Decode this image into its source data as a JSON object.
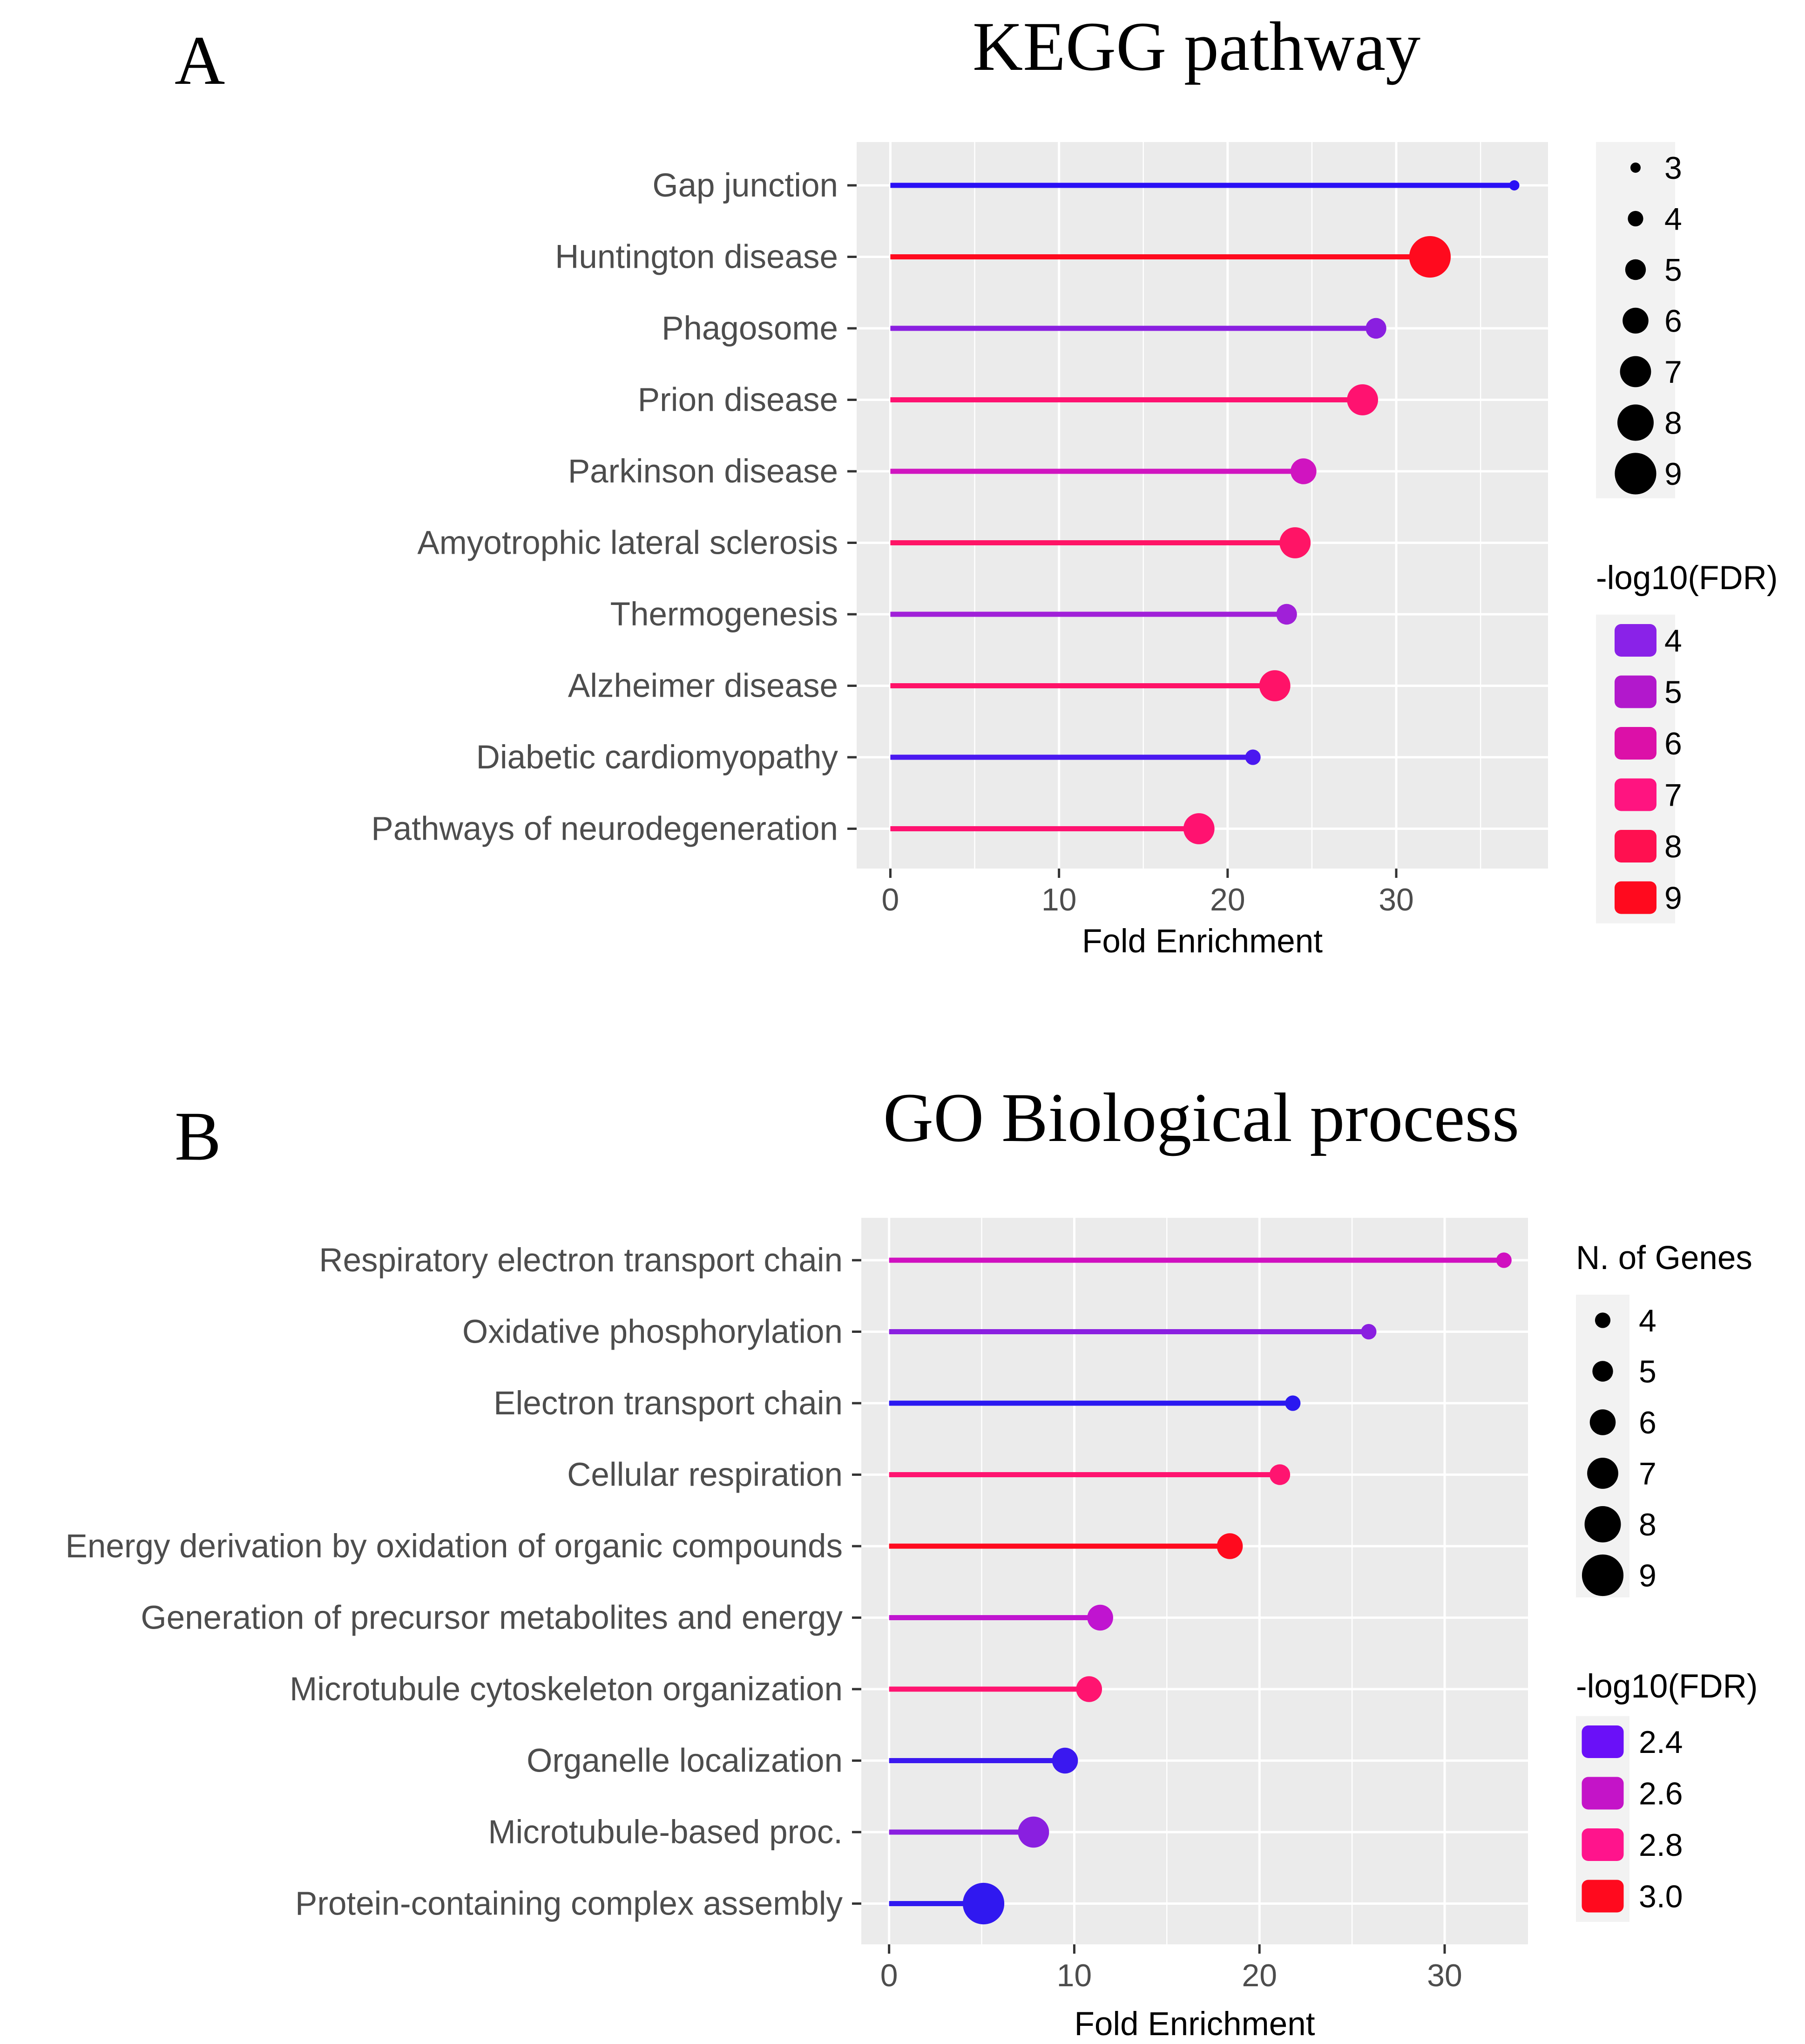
{
  "chart_data": [
    {
      "panel_label": "A",
      "title": "KEGG pathway",
      "type": "lollipop",
      "xlabel": "Fold Enrichment",
      "ylabel": "",
      "xlim": [
        -2,
        39
      ],
      "xticks": [
        0,
        10,
        20,
        30
      ],
      "xtick_labels": [
        "0",
        "10",
        "20",
        "30"
      ],
      "grid": true,
      "categories": [
        "Gap junction",
        "Huntington disease",
        "Phagosome",
        "Prion disease",
        "Parkinson disease",
        "Amyotrophic lateral sclerosis",
        "Thermogenesis",
        "Alzheimer disease",
        "Diabetic cardiomyopathy",
        "Pathways of neurodegeneration"
      ],
      "fold_enrichment": [
        37.0,
        32.0,
        28.8,
        28.0,
        24.5,
        24.0,
        23.5,
        22.8,
        21.5,
        18.3
      ],
      "n_genes": [
        3,
        9,
        5,
        7,
        6,
        7,
        5,
        7,
        4,
        7
      ],
      "neg_log10_fdr": [
        3.7,
        9.0,
        4.5,
        7.2,
        5.5,
        7.3,
        4.8,
        7.2,
        4.0,
        7.0
      ],
      "colors": [
        "#2a10f5",
        "#ff0a1e",
        "#8a1fe0",
        "#ff1270",
        "#d014c0",
        "#ff1466",
        "#a020d8",
        "#ff1268",
        "#4a18f0",
        "#ff1270"
      ],
      "size_legend": {
        "title": "",
        "values": [
          "3",
          "4",
          "5",
          "6",
          "7",
          "8",
          "9"
        ]
      },
      "color_legend": {
        "title": "-log10(FDR)",
        "values": [
          "4",
          "5",
          "6",
          "7",
          "8",
          "9"
        ],
        "colors": [
          "#8a22e8",
          "#b218cc",
          "#dc10a8",
          "#ff1480",
          "#ff1050",
          "#ff0a1e"
        ]
      }
    },
    {
      "panel_label": "B",
      "title": "GO Biological process",
      "type": "lollipop",
      "xlabel": "Fold Enrichment",
      "ylabel": "",
      "xlim": [
        -1.5,
        34.5
      ],
      "xticks": [
        0,
        10,
        20,
        30
      ],
      "xtick_labels": [
        "0",
        "10",
        "20",
        "30"
      ],
      "grid": true,
      "categories": [
        "Respiratory electron transport chain",
        "Oxidative phosphorylation",
        "Electron transport chain",
        "Cellular respiration",
        "Energy derivation by oxidation of organic compounds",
        "Generation of precursor metabolites and energy",
        "Microtubule cytoskeleton organization",
        "Organelle localization",
        "Microtubule-based proc.",
        "Protein-containing complex assembly"
      ],
      "fold_enrichment": [
        33.2,
        25.9,
        21.8,
        21.1,
        18.4,
        11.4,
        10.8,
        9.5,
        7.8,
        5.1
      ],
      "n_genes": [
        4,
        4,
        4,
        5,
        6,
        6,
        6,
        6,
        7,
        9
      ],
      "neg_log10_fdr": [
        2.65,
        2.5,
        2.35,
        2.85,
        3.0,
        2.6,
        2.8,
        2.4,
        2.5,
        2.38
      ],
      "colors": [
        "#d010c0",
        "#8a1fe0",
        "#2a18f0",
        "#ff1470",
        "#ff0a1e",
        "#c014d0",
        "#ff1470",
        "#3a18f0",
        "#8a1fe0",
        "#3018f0"
      ],
      "size_legend": {
        "title": "N. of Genes",
        "values": [
          "4",
          "5",
          "6",
          "7",
          "8",
          "9"
        ]
      },
      "color_legend": {
        "title": "-log10(FDR)",
        "values": [
          "2.4",
          "2.6",
          "2.8",
          "3.0"
        ],
        "colors": [
          "#6a10f8",
          "#c414c8",
          "#ff148c",
          "#ff0a1e"
        ]
      }
    }
  ]
}
